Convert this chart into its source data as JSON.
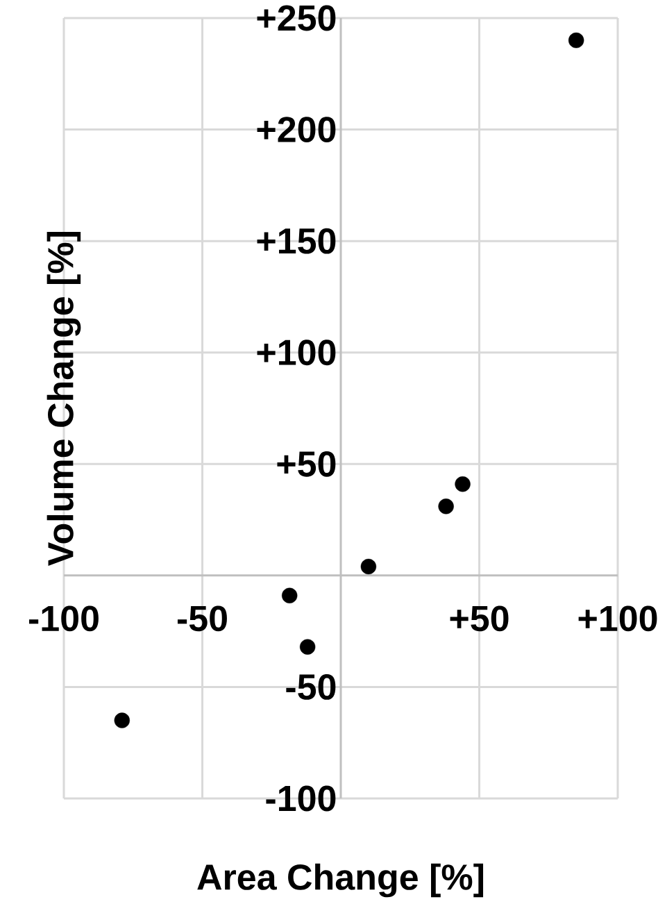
{
  "chart_data": {
    "type": "scatter",
    "xlabel": "Area Change [%]",
    "ylabel": "Volume Change [%]",
    "x": [
      85,
      44,
      38,
      10,
      -18.5,
      -12,
      -79
    ],
    "values": [
      240,
      41,
      31,
      4,
      -9,
      -32,
      -65
    ],
    "color": "#000000",
    "marker": "circle",
    "grid": true,
    "xlim": [
      -100,
      100
    ],
    "ylim": [
      -100,
      250
    ],
    "xticks": [
      {
        "value": -100,
        "label": "-100"
      },
      {
        "value": -50,
        "label": "-50"
      },
      {
        "value": 0,
        "label": null
      },
      {
        "value": 50,
        "label": "+50"
      },
      {
        "value": 100,
        "label": "+100"
      }
    ],
    "yticks": [
      {
        "value": -100,
        "label": "-100"
      },
      {
        "value": -50,
        "label": "-50"
      },
      {
        "value": 0,
        "label": null
      },
      {
        "value": 50,
        "label": "+50"
      },
      {
        "value": 100,
        "label": "+100"
      },
      {
        "value": 150,
        "label": "+150"
      },
      {
        "value": 200,
        "label": "+200"
      },
      {
        "value": 250,
        "label": "+250"
      }
    ]
  }
}
